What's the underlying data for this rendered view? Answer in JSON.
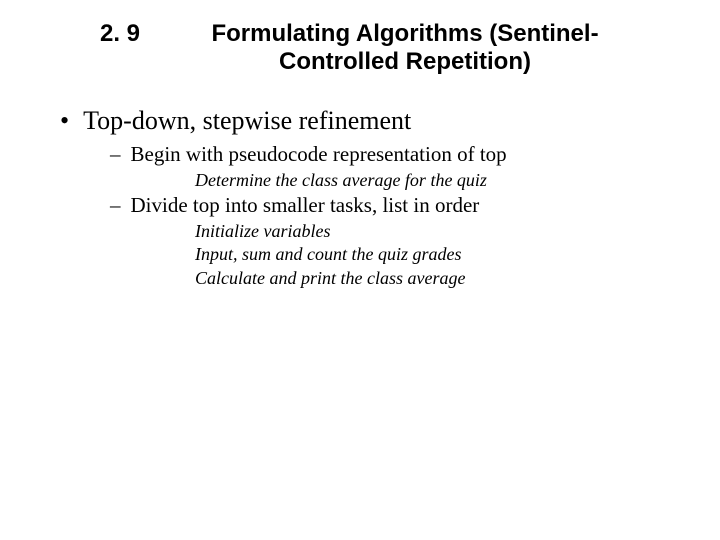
{
  "header": {
    "number": "2. 9",
    "title_line1": "Formulating Algorithms (Sentinel-",
    "title_line2": "Controlled Repetition)"
  },
  "main_bullet": {
    "marker": "•",
    "text": "Top-down, stepwise refinement"
  },
  "sub1": {
    "marker": "–",
    "text": "Begin with pseudocode representation of top"
  },
  "pseudo1": "Determine the class average for the quiz",
  "sub2": {
    "marker": "–",
    "text": "Divide top into smaller tasks, list in order"
  },
  "pseudo2": "Initialize variables",
  "pseudo3": "Input, sum and count the quiz grades",
  "pseudo4": "Calculate and print the class average",
  "colors": {
    "background": "#ffffff",
    "text": "#000000"
  },
  "typography": {
    "header_font": "Arial",
    "header_size_pt": 18,
    "header_weight": "bold",
    "body_font": "Times New Roman",
    "main_bullet_size_pt": 20,
    "sub_bullet_size_pt": 16,
    "pseudocode_size_pt": 13,
    "pseudocode_style": "italic"
  }
}
